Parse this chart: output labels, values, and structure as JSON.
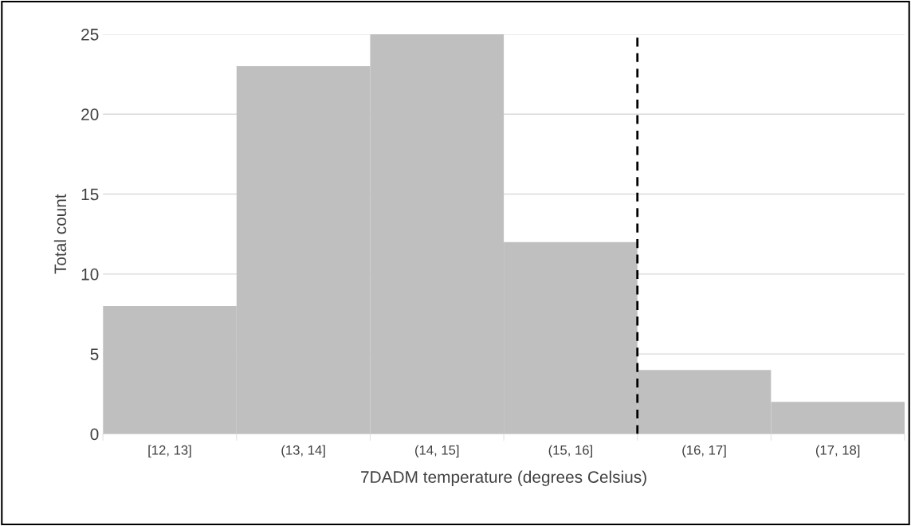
{
  "chart_data": {
    "type": "bar",
    "xlabel": "7DADM temperature (degrees Celsius)",
    "ylabel": "Total count",
    "categories": [
      "[12, 13]",
      "(13, 14]",
      "(14, 15]",
      "(15, 16]",
      "(16, 17]",
      "(17, 18]"
    ],
    "values": [
      8,
      23,
      25,
      12,
      4,
      2
    ],
    "color": "#bfbfbf",
    "ylim": [
      0,
      25
    ],
    "yticks": [
      0,
      5,
      10,
      15,
      20,
      25
    ],
    "grid": "y",
    "ref_lines": [
      {
        "axis": "x",
        "value": "(15, 16]",
        "color": "#000000",
        "line_style": "dashed"
      }
    ]
  }
}
